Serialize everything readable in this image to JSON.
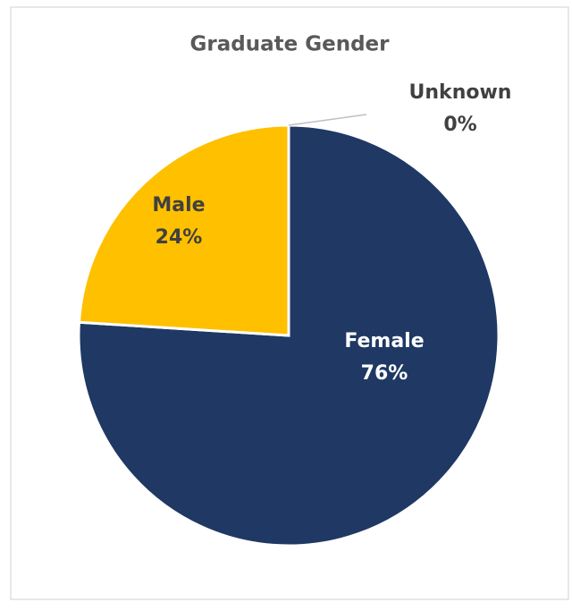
{
  "chart_data": {
    "type": "pie",
    "title": "Graduate Gender",
    "categories": [
      "Female",
      "Male",
      "Unknown"
    ],
    "values": [
      76,
      24,
      0
    ],
    "value_labels": [
      "76%",
      "24%",
      "0%"
    ],
    "colors": [
      "#1f3864",
      "#ffc000",
      "#a5a5a5"
    ]
  }
}
